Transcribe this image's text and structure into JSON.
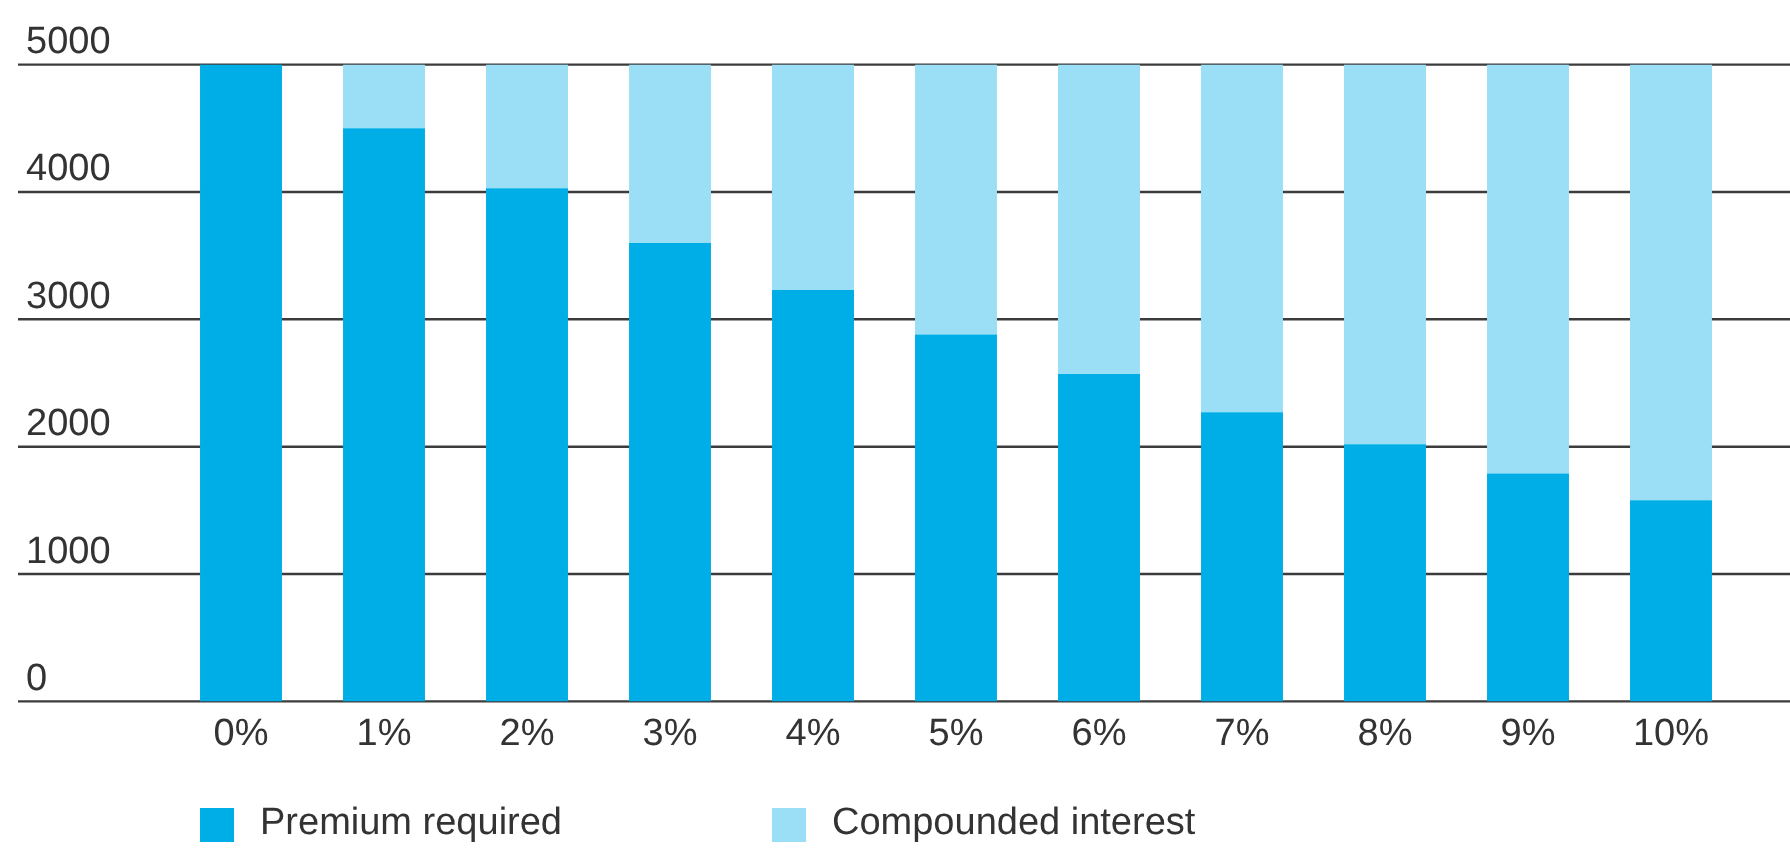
{
  "chart_data": {
    "type": "bar",
    "stacked": true,
    "categories": [
      "0%",
      "1%",
      "2%",
      "3%",
      "4%",
      "5%",
      "6%",
      "7%",
      "8%",
      "9%",
      "10%"
    ],
    "series": [
      {
        "name": "Premium required",
        "color": "#00aee7",
        "values": [
          5000,
          4500,
          4030,
          3600,
          3230,
          2880,
          2570,
          2270,
          2020,
          1790,
          1580
        ]
      },
      {
        "name": "Compounded interest",
        "color": "#9adff6",
        "values": [
          0,
          500,
          970,
          1400,
          1770,
          2120,
          2430,
          2730,
          2980,
          3210,
          3420
        ]
      }
    ],
    "ylim": [
      0,
      5000
    ],
    "yticks": [
      0,
      1000,
      2000,
      3000,
      4000,
      5000
    ],
    "grid": "y",
    "legend": "bottom left"
  }
}
